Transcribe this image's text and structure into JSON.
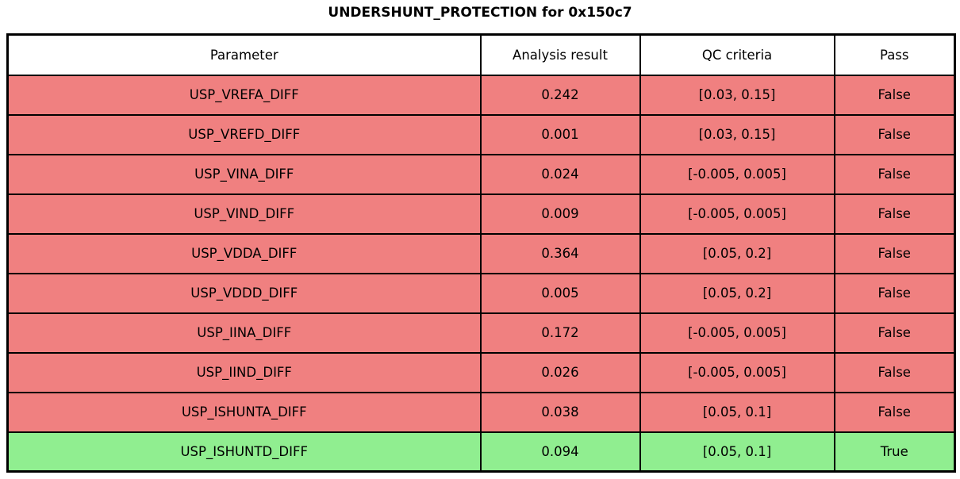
{
  "title": "UNDERSHUNT_PROTECTION for 0x150c7",
  "colors": {
    "fail_row": "#f08080",
    "pass_row": "#90ee90",
    "border": "#000000",
    "header_bg": "#ffffff"
  },
  "chart_data": {
    "type": "table",
    "title": "UNDERSHUNT_PROTECTION for 0x150c7",
    "columns": [
      "Parameter",
      "Analysis result",
      "QC criteria",
      "Pass"
    ],
    "rows": [
      {
        "parameter": "USP_VREFA_DIFF",
        "result": "0.242",
        "criteria": "[0.03, 0.15]",
        "pass": "False"
      },
      {
        "parameter": "USP_VREFD_DIFF",
        "result": "0.001",
        "criteria": "[0.03, 0.15]",
        "pass": "False"
      },
      {
        "parameter": "USP_VINA_DIFF",
        "result": "0.024",
        "criteria": "[-0.005, 0.005]",
        "pass": "False"
      },
      {
        "parameter": "USP_VIND_DIFF",
        "result": "0.009",
        "criteria": "[-0.005, 0.005]",
        "pass": "False"
      },
      {
        "parameter": "USP_VDDA_DIFF",
        "result": "0.364",
        "criteria": "[0.05, 0.2]",
        "pass": "False"
      },
      {
        "parameter": "USP_VDDD_DIFF",
        "result": "0.005",
        "criteria": "[0.05, 0.2]",
        "pass": "False"
      },
      {
        "parameter": "USP_IINA_DIFF",
        "result": "0.172",
        "criteria": "[-0.005, 0.005]",
        "pass": "False"
      },
      {
        "parameter": "USP_IIND_DIFF",
        "result": "0.026",
        "criteria": "[-0.005, 0.005]",
        "pass": "False"
      },
      {
        "parameter": "USP_ISHUNTA_DIFF",
        "result": "0.038",
        "criteria": "[0.05, 0.1]",
        "pass": "False"
      },
      {
        "parameter": "USP_ISHUNTD_DIFF",
        "result": "0.094",
        "criteria": "[0.05, 0.1]",
        "pass": "True"
      }
    ]
  }
}
